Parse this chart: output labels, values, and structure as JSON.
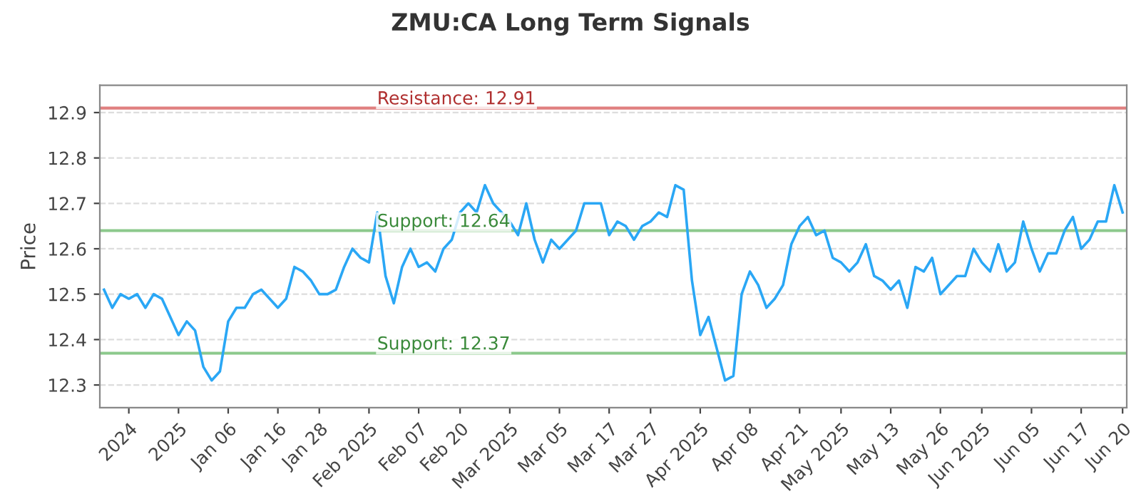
{
  "chart_data": {
    "type": "line",
    "title": "ZMU:CA Long Term Signals",
    "ylabel": "Price",
    "categories": [
      null,
      null,
      null,
      "2024",
      null,
      null,
      null,
      null,
      null,
      "2025",
      null,
      null,
      null,
      null,
      null,
      "Jan 06",
      null,
      null,
      null,
      null,
      null,
      "Jan 16",
      null,
      null,
      null,
      null,
      "Jan 28",
      null,
      null,
      null,
      null,
      null,
      "Feb 2025",
      null,
      null,
      null,
      null,
      null,
      "Feb 07",
      null,
      null,
      null,
      null,
      "Feb 20",
      null,
      null,
      null,
      null,
      null,
      "Mar 2025",
      null,
      null,
      null,
      null,
      null,
      "Mar 05",
      null,
      null,
      null,
      null,
      null,
      "Mar 17",
      null,
      null,
      null,
      null,
      "Mar 27",
      null,
      null,
      null,
      null,
      null,
      "Apr 2025",
      null,
      null,
      null,
      null,
      null,
      "Apr 08",
      null,
      null,
      null,
      null,
      null,
      "Apr 21",
      null,
      null,
      null,
      null,
      "May 2025",
      null,
      null,
      null,
      null,
      null,
      "May 13",
      null,
      null,
      null,
      null,
      null,
      "May 26",
      null,
      null,
      null,
      null,
      "Jun 2025",
      null,
      null,
      null,
      null,
      null,
      "Jun 05",
      null,
      null,
      null,
      null,
      null,
      "Jun 17",
      null,
      null,
      null,
      null,
      "Jun 20"
    ],
    "series": [
      {
        "color": "#2aa7f5",
        "values": [
          12.51,
          12.47,
          12.5,
          12.49,
          12.5,
          12.47,
          12.5,
          12.49,
          12.45,
          12.41,
          12.44,
          12.42,
          12.34,
          12.31,
          12.33,
          12.44,
          12.47,
          12.47,
          12.5,
          12.51,
          12.49,
          12.47,
          12.49,
          12.56,
          12.55,
          12.53,
          12.5,
          12.5,
          12.51,
          12.56,
          12.6,
          12.58,
          12.57,
          12.68,
          12.54,
          12.48,
          12.56,
          12.6,
          12.56,
          12.57,
          12.55,
          12.6,
          12.62,
          12.68,
          12.7,
          12.68,
          12.74,
          12.7,
          12.68,
          12.66,
          12.63,
          12.7,
          12.62,
          12.57,
          12.62,
          12.6,
          12.62,
          12.64,
          12.7,
          12.7,
          12.7,
          12.63,
          12.66,
          12.65,
          12.62,
          12.65,
          12.66,
          12.68,
          12.67,
          12.74,
          12.73,
          12.53,
          12.41,
          12.45,
          12.38,
          12.31,
          12.32,
          12.5,
          12.55,
          12.52,
          12.47,
          12.49,
          12.52,
          12.61,
          12.65,
          12.67,
          12.63,
          12.64,
          12.58,
          12.57,
          12.55,
          12.57,
          12.61,
          12.54,
          12.53,
          12.51,
          12.53,
          12.47,
          12.56,
          12.55,
          12.58,
          12.5,
          12.52,
          12.54,
          12.54,
          12.6,
          12.57,
          12.55,
          12.61,
          12.55,
          12.57,
          12.66,
          12.6,
          12.55,
          12.59,
          12.59,
          12.64,
          12.67,
          12.6,
          12.62,
          12.66,
          12.66,
          12.74,
          12.68
        ]
      }
    ],
    "ylim": [
      12.25,
      12.96
    ],
    "yticks": [
      12.3,
      12.4,
      12.5,
      12.6,
      12.7,
      12.8,
      12.9
    ],
    "grid": "y",
    "marker": "none",
    "line_style": "solid",
    "ref_lines": [
      {
        "axis": "y",
        "value": 12.91,
        "label": "Resistance: 12.91",
        "color": "#e08080"
      },
      {
        "axis": "y",
        "value": 12.64,
        "label": "Support: 12.64",
        "color": "#8cc98c"
      },
      {
        "axis": "y",
        "value": 12.37,
        "label": "Support: 12.37",
        "color": "#8cc98c"
      }
    ]
  }
}
